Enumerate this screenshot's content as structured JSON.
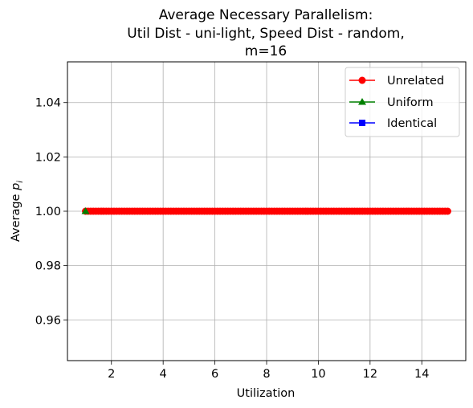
{
  "chart_data": {
    "type": "line",
    "title_lines": [
      "Average Necessary Parallelism:",
      "Util Dist - uni-light, Speed Dist - random,",
      "m=16"
    ],
    "xlabel": "Utilization",
    "ylabel_base": "Average ",
    "ylabel_var": "p",
    "ylabel_sub": "i",
    "xlim": [
      0.3,
      15.7
    ],
    "ylim": [
      0.945,
      1.055
    ],
    "xticks": [
      2,
      4,
      6,
      8,
      10,
      12,
      14
    ],
    "yticks": [
      0.96,
      0.98,
      1.0,
      1.02,
      1.04
    ],
    "xtick_labels": [
      "2",
      "4",
      "6",
      "8",
      "10",
      "12",
      "14"
    ],
    "ytick_labels": [
      "0.96",
      "0.98",
      "1.00",
      "1.02",
      "1.04"
    ],
    "grid": true,
    "legend_position": "top-right",
    "series": [
      {
        "name": "Unrelated",
        "color": "#ff0000",
        "marker": "circle",
        "x": [
          1.0,
          1.1,
          1.2,
          1.3,
          1.4,
          1.5,
          1.6,
          1.7,
          1.8,
          1.9,
          2.0,
          2.1,
          2.2,
          2.3,
          2.4,
          2.5,
          2.6,
          2.7,
          2.8,
          2.9,
          3.0,
          3.1,
          3.2,
          3.3,
          3.4,
          3.5,
          3.6,
          3.7,
          3.8,
          3.9,
          4.0,
          4.1,
          4.2,
          4.3,
          4.4,
          4.5,
          4.6,
          4.7,
          4.8,
          4.9,
          5.0,
          5.1,
          5.2,
          5.3,
          5.4,
          5.5,
          5.6,
          5.7,
          5.8,
          5.9,
          6.0,
          6.1,
          6.2,
          6.3,
          6.4,
          6.5,
          6.6,
          6.7,
          6.8,
          6.9,
          7.0,
          7.1,
          7.2,
          7.3,
          7.4,
          7.5,
          7.6,
          7.7,
          7.8,
          7.9,
          8.0,
          8.1,
          8.2,
          8.3,
          8.4,
          8.5,
          8.6,
          8.7,
          8.8,
          8.9,
          9.0,
          9.1,
          9.2,
          9.3,
          9.4,
          9.5,
          9.6,
          9.7,
          9.8,
          9.9,
          10.0,
          10.1,
          10.2,
          10.3,
          10.4,
          10.5,
          10.6,
          10.7,
          10.8,
          10.9,
          11.0,
          11.1,
          11.2,
          11.3,
          11.4,
          11.5,
          11.6,
          11.7,
          11.8,
          11.9,
          12.0,
          12.1,
          12.2,
          12.3,
          12.4,
          12.5,
          12.6,
          12.7,
          12.8,
          12.9,
          13.0,
          13.1,
          13.2,
          13.3,
          13.4,
          13.5,
          13.6,
          13.7,
          13.8,
          13.9,
          14.0,
          14.1,
          14.2,
          14.3,
          14.4,
          14.5,
          14.6,
          14.7,
          14.8,
          14.9,
          15.0
        ],
        "y": [
          1.0,
          1.0,
          1.0,
          1.0,
          1.0,
          1.0,
          1.0,
          1.0,
          1.0,
          1.0,
          1.0,
          1.0,
          1.0,
          1.0,
          1.0,
          1.0,
          1.0,
          1.0,
          1.0,
          1.0,
          1.0,
          1.0,
          1.0,
          1.0,
          1.0,
          1.0,
          1.0,
          1.0,
          1.0,
          1.0,
          1.0,
          1.0,
          1.0,
          1.0,
          1.0,
          1.0,
          1.0,
          1.0,
          1.0,
          1.0,
          1.0,
          1.0,
          1.0,
          1.0,
          1.0,
          1.0,
          1.0,
          1.0,
          1.0,
          1.0,
          1.0,
          1.0,
          1.0,
          1.0,
          1.0,
          1.0,
          1.0,
          1.0,
          1.0,
          1.0,
          1.0,
          1.0,
          1.0,
          1.0,
          1.0,
          1.0,
          1.0,
          1.0,
          1.0,
          1.0,
          1.0,
          1.0,
          1.0,
          1.0,
          1.0,
          1.0,
          1.0,
          1.0,
          1.0,
          1.0,
          1.0,
          1.0,
          1.0,
          1.0,
          1.0,
          1.0,
          1.0,
          1.0,
          1.0,
          1.0,
          1.0,
          1.0,
          1.0,
          1.0,
          1.0,
          1.0,
          1.0,
          1.0,
          1.0,
          1.0,
          1.0,
          1.0,
          1.0,
          1.0,
          1.0,
          1.0,
          1.0,
          1.0,
          1.0,
          1.0,
          1.0,
          1.0,
          1.0,
          1.0,
          1.0,
          1.0,
          1.0,
          1.0,
          1.0,
          1.0,
          1.0,
          1.0,
          1.0,
          1.0,
          1.0,
          1.0,
          1.0,
          1.0,
          1.0,
          1.0,
          1.0,
          1.0,
          1.0,
          1.0,
          1.0,
          1.0,
          1.0,
          1.0,
          1.0,
          1.0,
          1.0
        ]
      },
      {
        "name": "Uniform",
        "color": "#008000",
        "marker": "triangle",
        "x": [
          1.0
        ],
        "y": [
          1.0
        ]
      },
      {
        "name": "Identical",
        "color": "#0000ff",
        "marker": "square",
        "x": [],
        "y": []
      }
    ]
  }
}
